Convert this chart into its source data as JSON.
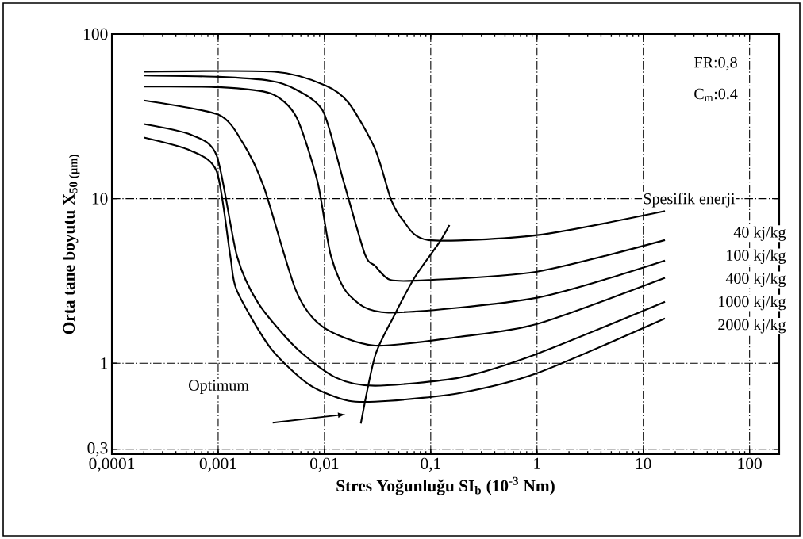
{
  "chart_data": {
    "type": "line",
    "xlabel": "Stres Yoğunluğu SI$_{b}$ (10$^{-3}$ Nm)",
    "ylabel": "Orta tane boyutu X$_{50 (µm)}$",
    "annotations": [
      "FR:0,8",
      "C$_{m}$:0.4",
      "Spesifik enerji",
      "40 kj/kg",
      "100 kj/kg",
      "400 kj/kg",
      "1000 kj/kg",
      "2000 kj/kg",
      "Optimum"
    ],
    "series": [
      {
        "color": "#000000",
        "x": [
          0.0002,
          0.0034,
          0.01,
          0.017,
          0.03,
          0.042,
          0.054,
          0.095,
          1,
          16
        ],
        "values": [
          59,
          59,
          49,
          38,
          20,
          10,
          7.5,
          5.6,
          6,
          8.4
        ]
      },
      {
        "color": "#000000",
        "x": [
          0.0002,
          0.001,
          0.0031,
          0.0054,
          0.0097,
          0.015,
          0.024,
          0.03,
          0.042,
          0.095,
          1,
          16
        ],
        "values": [
          56,
          55,
          52,
          46,
          34,
          13,
          4.6,
          3.9,
          3.2,
          3.2,
          3.6,
          5.6
        ]
      },
      {
        "color": "#000000",
        "x": [
          0.0002,
          0.001,
          0.0031,
          0.0054,
          0.0086,
          0.0115,
          0.017,
          0.04,
          1,
          16
        ],
        "values": [
          48,
          47.6,
          43.6,
          31.6,
          12.7,
          4.5,
          2.6,
          2.03,
          2.5,
          4.2
        ]
      },
      {
        "color": "#000000",
        "x": [
          0.0002,
          0.001,
          0.0017,
          0.0027,
          0.0054,
          0.0097,
          0.03,
          0.19,
          1,
          16
        ],
        "values": [
          39.5,
          32.4,
          21.9,
          11.7,
          2.76,
          1.66,
          1.28,
          1.45,
          1.73,
          3.3
        ]
      },
      {
        "color": "#000000",
        "x": [
          0.0002,
          0.00055,
          0.00097,
          0.0015,
          0.0024,
          0.0054,
          0.0127,
          0.03,
          0.19,
          1,
          16
        ],
        "values": [
          28.4,
          24.5,
          18.2,
          4.5,
          2.3,
          1.24,
          0.82,
          0.73,
          0.82,
          1.14,
          2.36
        ]
      },
      {
        "color": "#000000",
        "x": [
          0.0002,
          0.00055,
          0.00097,
          0.0013,
          0.0015,
          0.0031,
          0.0072,
          0.017,
          0.04,
          0.19,
          1,
          16
        ],
        "values": [
          23.5,
          19.6,
          14.6,
          4.5,
          2.76,
          1.24,
          0.74,
          0.59,
          0.59,
          0.66,
          0.87,
          1.87
        ]
      },
      {
        "color": "#000000",
        "x": [
          0.022,
          0.03,
          0.045,
          0.071,
          0.12,
          0.15
        ],
        "values": [
          0.43,
          1.11,
          1.93,
          3.34,
          5.4,
          6.9
        ]
      }
    ],
    "xlim": [
      0.0001,
      190
    ],
    "ylim": [
      0.28,
      100
    ],
    "xticks": [
      {
        "value": 0.0001,
        "label": "0,0001"
      },
      {
        "value": 0.001,
        "label": "0,001"
      },
      {
        "value": 0.01,
        "label": "0,01"
      },
      {
        "value": 0.1,
        "label": "0,1"
      },
      1,
      10,
      100
    ],
    "yticks": [
      {
        "value": 0.3,
        "label": "0,3"
      },
      1,
      10,
      100
    ],
    "log": "xy",
    "grid": true,
    "line_style": "solid"
  }
}
